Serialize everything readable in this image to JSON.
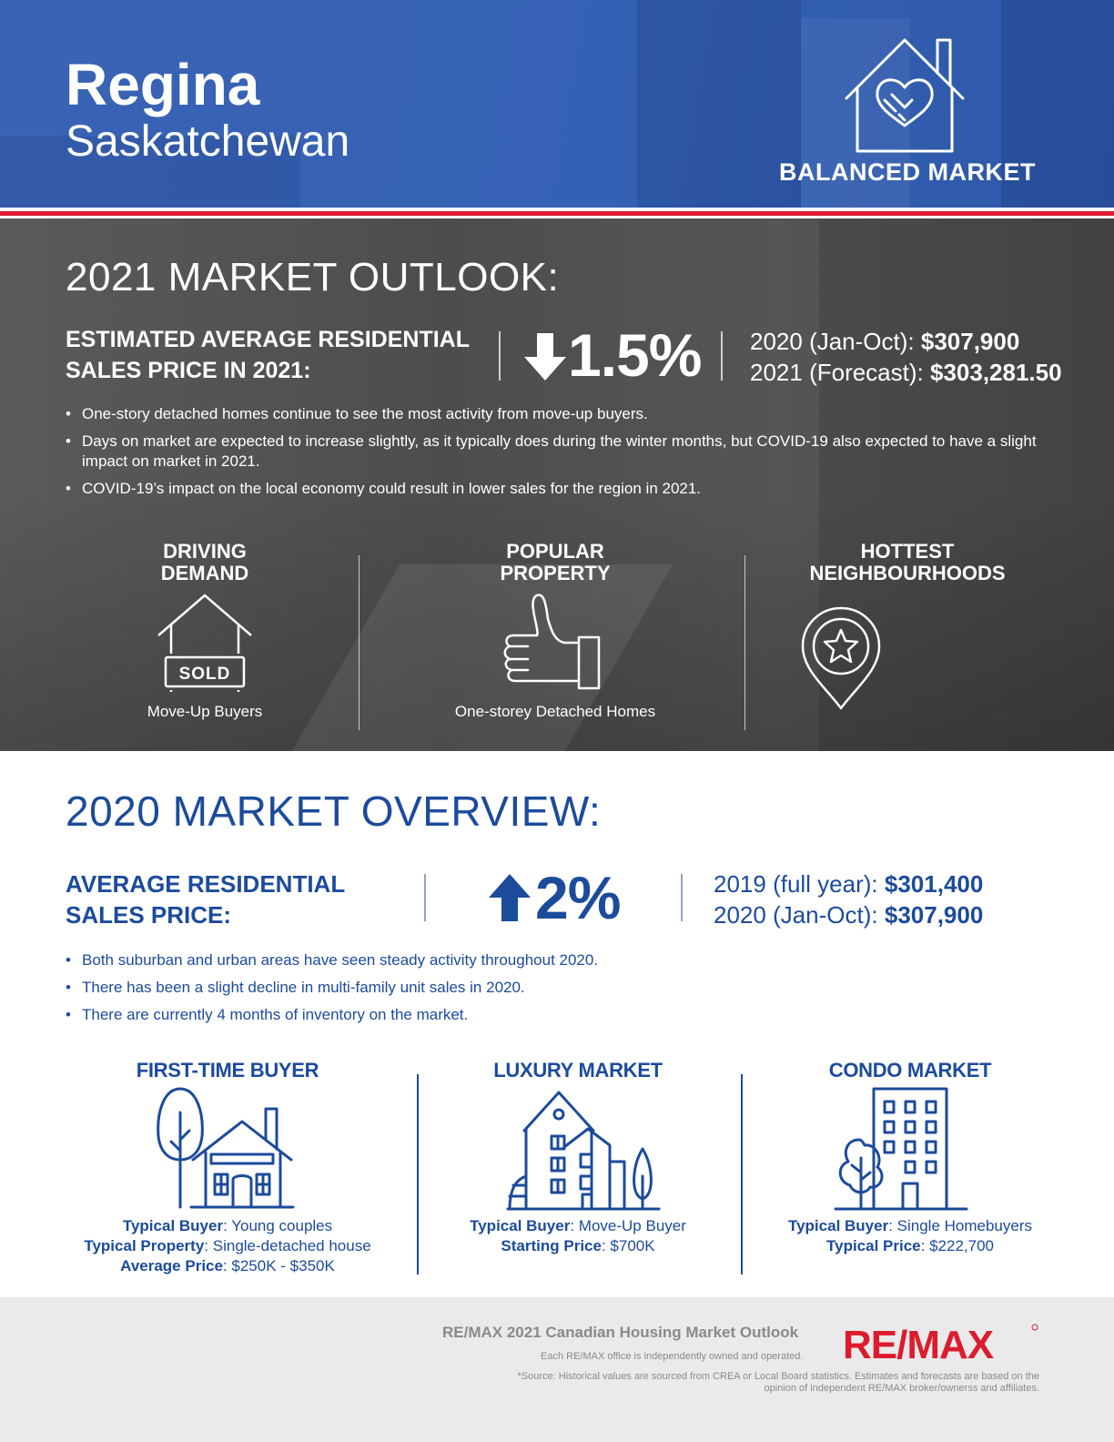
{
  "header": {
    "city": "Regina",
    "province": "Saskatchewan",
    "market_type": "BALANCED MARKET"
  },
  "outlook": {
    "heading": "2021 MARKET OUTLOOK:",
    "label": "ESTIMATED AVERAGE RESIDENTIAL SALES PRICE IN 2021:",
    "change_direction": "down",
    "change": "1.5%",
    "line1_label": "2020 (Jan-Oct): ",
    "line1_value": "$307,900",
    "line2_label": "2021 (Forecast): ",
    "line2_value": "$303,281.50",
    "bullets": [
      "One-story detached homes continue to see the most activity from move-up buyers.",
      "Days on market are expected to increase slightly, as it typically does during the winter months, but COVID-19 also expected to have a slight impact on market in 2021.",
      "COVID-19’s impact on the local economy could result in lower sales for the region in 2021."
    ],
    "stats": {
      "driving_title_1": "DRIVING",
      "driving_title_2": "DEMAND",
      "driving_value": "Move-Up Buyers",
      "sold_label": "SOLD",
      "popular_title_1": "POPULAR",
      "popular_title_2": "PROPERTY",
      "popular_value": "One-storey Detached Homes",
      "hottest_title_1": "HOTTEST",
      "hottest_title_2": "NEIGHBOURHOODS"
    }
  },
  "overview": {
    "heading": "2020 MARKET OVERVIEW:",
    "label": "AVERAGE RESIDENTIAL SALES PRICE:",
    "change_direction": "up",
    "change": "2%",
    "line1_label": "2019 (full year): ",
    "line1_value": "$301,400",
    "line2_label": "2020 (Jan-Oct): ",
    "line2_value": "$307,900",
    "bullets": [
      "Both suburban and urban areas have seen steady activity throughout 2020.",
      "There has been a slight decline in multi-family unit sales in 2020.",
      "There are currently 4 months of inventory on the market."
    ],
    "segments": {
      "first_time": {
        "title": "FIRST-TIME BUYER",
        "k1": "Typical Buyer",
        "v1": ": Young couples",
        "k2": "Typical Property",
        "v2": ": Single-detached house",
        "k3": "Average Price",
        "v3": ": $250K - $350K"
      },
      "luxury": {
        "title": "LUXURY MARKET",
        "k1": "Typical Buyer",
        "v1": ": Move-Up Buyer",
        "k2": "Starting Price",
        "v2": ": $700K"
      },
      "condo": {
        "title": "CONDO MARKET",
        "k1": "Typical Buyer",
        "v1": ": Single Homebuyers",
        "k2": "Typical Price",
        "v2": ": $222,700"
      }
    }
  },
  "footer": {
    "title": "RE/MAX 2021 Canadian Housing Market Outlook",
    "owned": "Each RE/MAX office is independently owned and operated.",
    "source": "*Source: Historical values are sourced from CREA or Local Board statistics. Estimates and forecasts are based on the opinion of independent RE/MAX broker/ownerss and affiliates.",
    "logo_text": "RE/MAX"
  },
  "colors": {
    "header_blue": "#3561b4",
    "brand_blue": "#1c4b9c",
    "remax_red": "#dc1c2e",
    "outlook_gray": "#505050",
    "footer_gray": "#eaeaea"
  },
  "icons": [
    "house-handshake-icon",
    "arrow-down-icon",
    "sold-house-icon",
    "thumbs-up-icon",
    "map-pin-star-icon",
    "arrow-up-icon",
    "tree-house-icon",
    "luxury-building-icon",
    "condo-tower-icon"
  ]
}
